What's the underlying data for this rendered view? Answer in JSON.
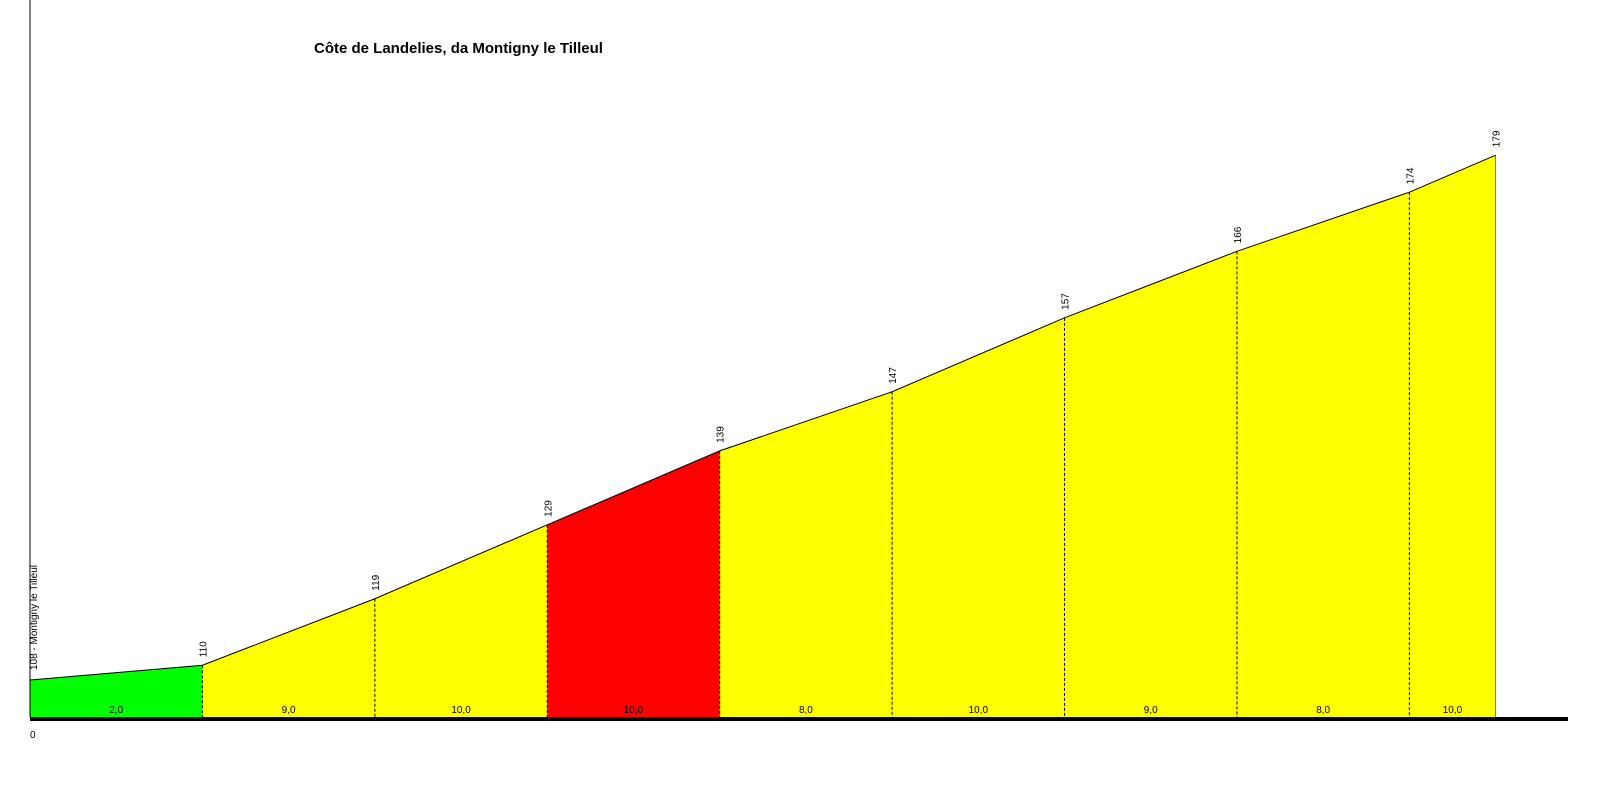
{
  "chart_data": {
    "type": "profile",
    "title": "Côte de Landelies, da Montigny le Tilleul",
    "x": [
      0,
      100,
      200,
      300,
      400,
      500,
      600,
      700,
      800,
      850
    ],
    "values": [
      108,
      110,
      119,
      129,
      139,
      147,
      157,
      166,
      174,
      179
    ],
    "value_labels": [
      "108 - Montigny le Tilleul",
      "110",
      "119",
      "129",
      "139",
      "147",
      "157",
      "166",
      "174",
      "179"
    ],
    "segments": {
      "values": [
        2,
        9,
        10,
        10,
        8,
        10,
        9,
        8,
        10
      ],
      "value_labels": [
        "2,0",
        "9,0",
        "10,0",
        "10,0",
        "8,0",
        "10,0",
        "9,0",
        "8,0",
        "10,0"
      ],
      "colors": [
        "#00ff00",
        "#ffff00",
        "#ffff00",
        "#ff0000",
        "#ffff00",
        "#ffff00",
        "#ffff00",
        "#ffff00",
        "#ffff00"
      ]
    },
    "xlim": [
      0,
      892
    ],
    "xticks": [
      0
    ],
    "ylim": [
      103,
      200
    ]
  }
}
